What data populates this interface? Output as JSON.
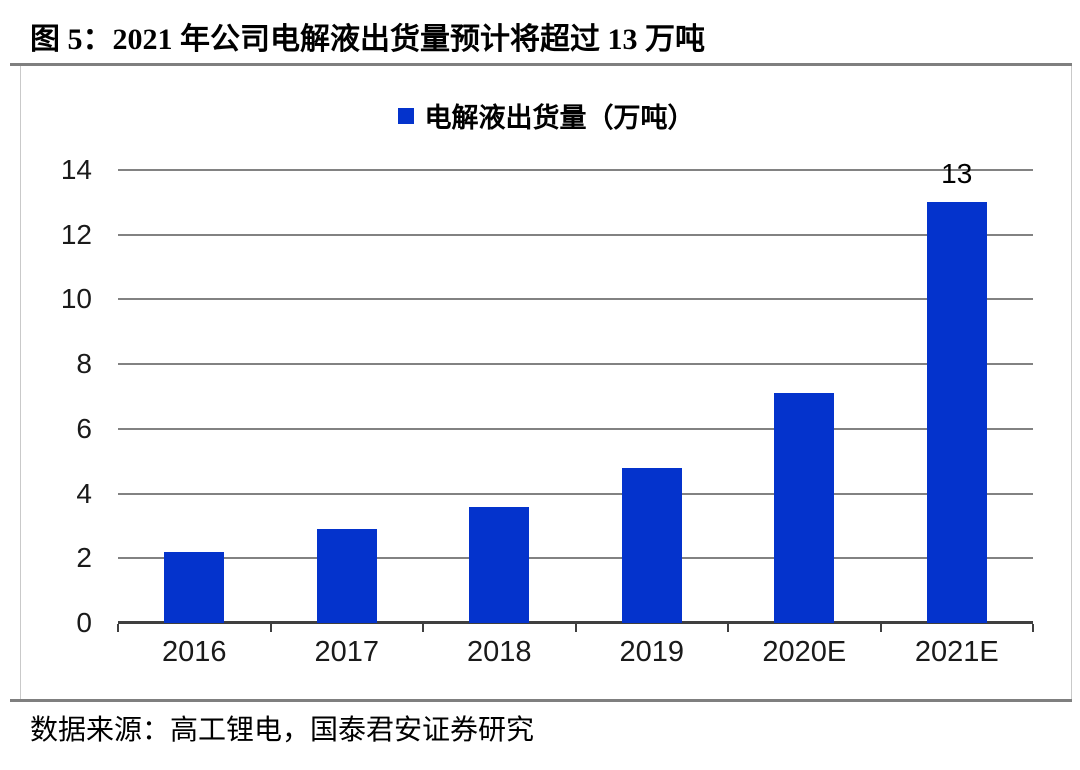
{
  "title": "图 5：2021 年公司电解液出货量预计将超过 13 万吨",
  "source": "数据来源：高工锂电，国泰君安证券研究",
  "colors": {
    "bar": "#0433cc",
    "gridline": "#828282",
    "axis": "#3f3f3f",
    "divider_rule": "#7f7f7f",
    "box_border": "#c9c9c9"
  },
  "chart_data": {
    "type": "bar",
    "title": "图 5：2021 年公司电解液出货量预计将超过 13 万吨",
    "legend": "电解液出货量（万吨）",
    "legend_position": "top-center",
    "categories": [
      "2016",
      "2017",
      "2018",
      "2019",
      "2020E",
      "2021E"
    ],
    "values": [
      2.2,
      2.9,
      3.6,
      4.8,
      7.1,
      13
    ],
    "data_labels": [
      "",
      "",
      "",
      "",
      "",
      "13"
    ],
    "ylabel": "",
    "xlabel": "",
    "unit": "万吨",
    "ylim": [
      0,
      14
    ],
    "yticks": [
      0,
      2,
      4,
      6,
      8,
      10,
      12,
      14
    ],
    "grid": true,
    "source": "数据来源：高工锂电，国泰君安证券研究"
  }
}
